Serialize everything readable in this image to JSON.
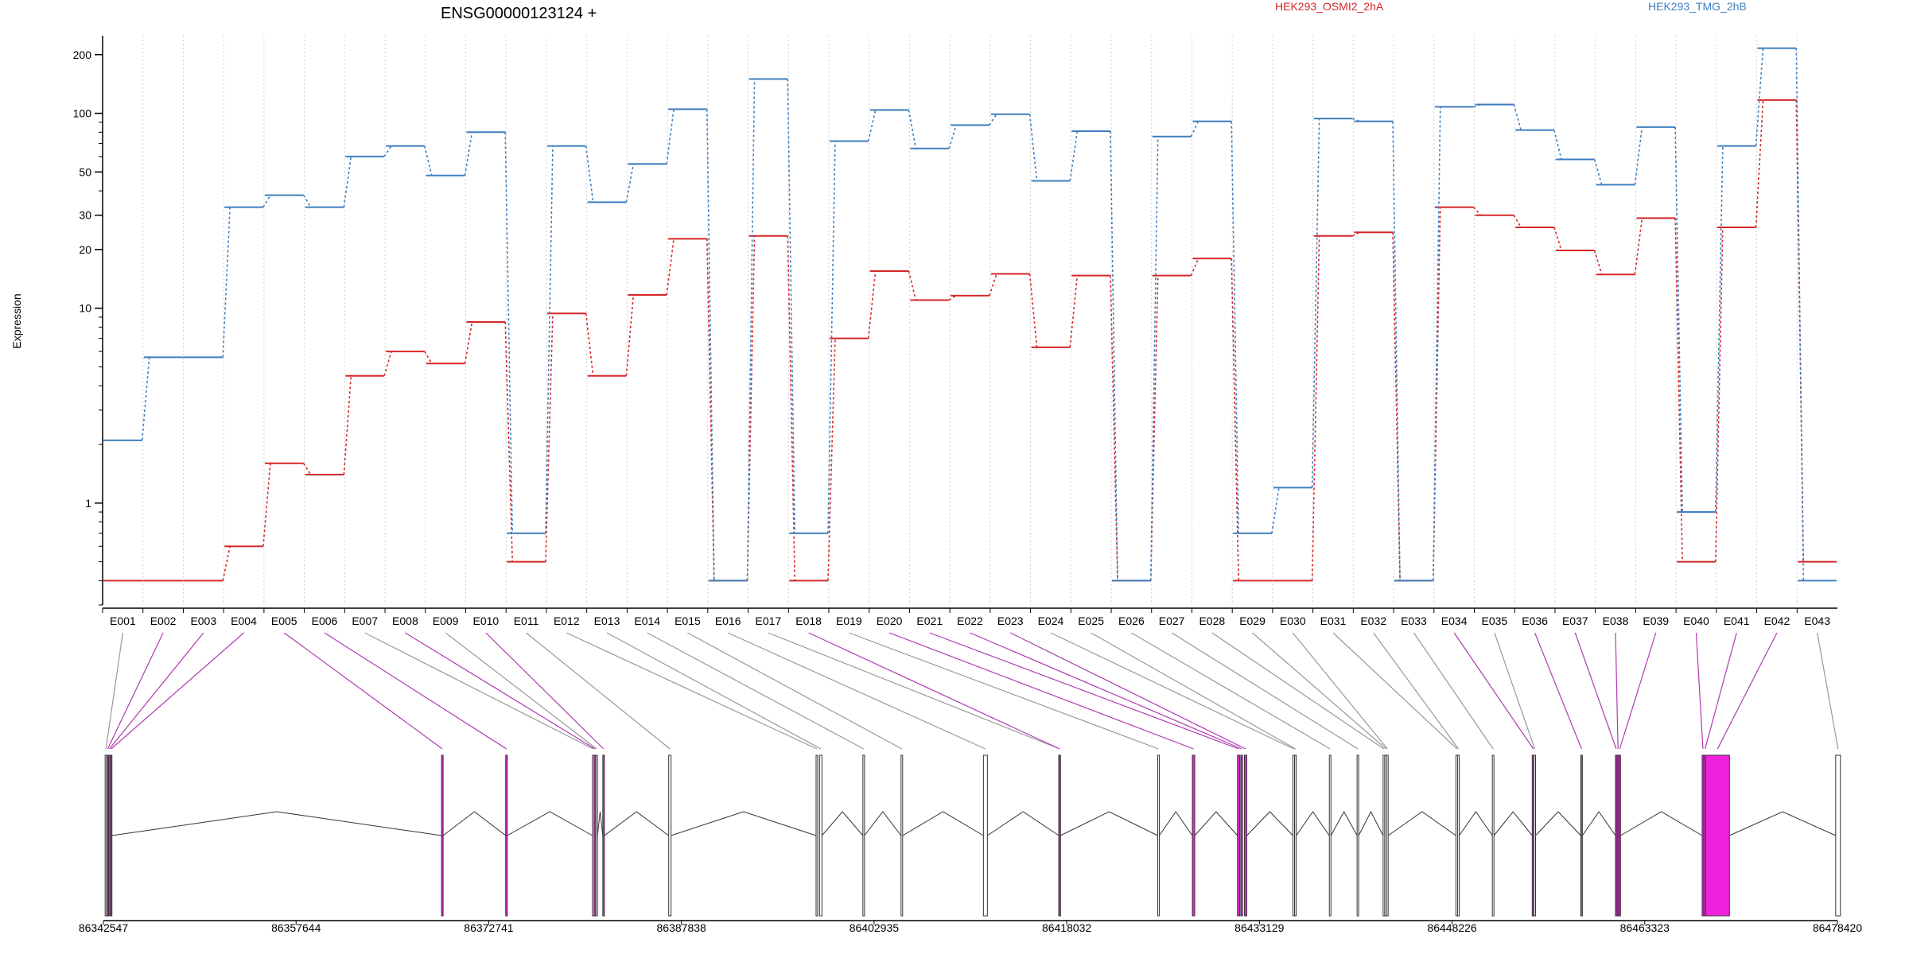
{
  "chart_data": {
    "type": "line",
    "title": "ENSG00000123124 +",
    "ylabel": "Expression",
    "y_scale": "log",
    "ylim": [
      0.3,
      250
    ],
    "y_ticks": [
      1,
      10,
      20,
      30,
      50,
      100,
      200
    ],
    "grid": "vertical dotted lines at exon bins",
    "legend_placement": "top",
    "exons": [
      "E001",
      "E002",
      "E003",
      "E004",
      "E005",
      "E006",
      "E007",
      "E008",
      "E009",
      "E010",
      "E011",
      "E012",
      "E013",
      "E014",
      "E015",
      "E016",
      "E017",
      "E018",
      "E019",
      "E020",
      "E021",
      "E022",
      "E023",
      "E024",
      "E025",
      "E026",
      "E027",
      "E028",
      "E029",
      "E030",
      "E031",
      "E032",
      "E033",
      "E034",
      "E035",
      "E036",
      "E037",
      "E038",
      "E039",
      "E040",
      "E041",
      "E042",
      "E043"
    ],
    "series": [
      {
        "name": "HEK293_OSMI2_2hA",
        "color": "#d62728",
        "values": [
          0.4,
          0.4,
          0.4,
          0.6,
          1.6,
          1.4,
          4.5,
          6.0,
          5.2,
          8.5,
          0.5,
          9.4,
          4.5,
          11.7,
          22.7,
          0.4,
          23.5,
          0.4,
          7.0,
          15.5,
          11.0,
          11.6,
          15.0,
          6.3,
          14.7,
          0.4,
          14.7,
          18.0,
          0.4,
          0.4,
          23.5,
          24.5,
          0.4,
          33.0,
          30.0,
          26.0,
          19.8,
          14.9,
          29.0,
          0.5,
          26.0,
          117.0,
          0.5
        ]
      },
      {
        "name": "HEK293_TMG_2hB",
        "color": "#3f7fbf",
        "values": [
          2.1,
          5.6,
          5.6,
          33.0,
          38.0,
          33.0,
          60.0,
          68.0,
          48.0,
          80.0,
          0.7,
          68.0,
          35.0,
          55.0,
          105.0,
          0.4,
          150.0,
          0.7,
          72.0,
          104.0,
          66.0,
          87.0,
          99.0,
          45.0,
          81.0,
          0.4,
          76.0,
          91.0,
          0.7,
          1.2,
          94.0,
          91.0,
          0.4,
          108.0,
          111.0,
          82.0,
          58.0,
          43.0,
          85.0,
          0.9,
          68.0,
          216.0,
          0.4
        ]
      }
    ],
    "genomic_axis": {
      "tick_labels": [
        "86342547",
        "86357644",
        "86372741",
        "86387838",
        "86402935",
        "86418032",
        "86433129",
        "86448226",
        "86463323",
        "86478420"
      ],
      "range": [
        86342547,
        86478420
      ]
    },
    "gene_model": {
      "exon_colors": {
        "normal": "#ffffff",
        "significant": "#ee22dd"
      },
      "exon_significant": [
        false,
        true,
        true,
        true,
        true,
        true,
        false,
        true,
        false,
        true,
        false,
        false,
        false,
        false,
        false,
        false,
        false,
        true,
        false,
        true,
        true,
        true,
        true,
        false,
        false,
        false,
        false,
        false,
        false,
        false,
        false,
        false,
        false,
        true,
        false,
        true,
        true,
        true,
        true,
        true,
        true,
        true,
        false
      ]
    }
  }
}
